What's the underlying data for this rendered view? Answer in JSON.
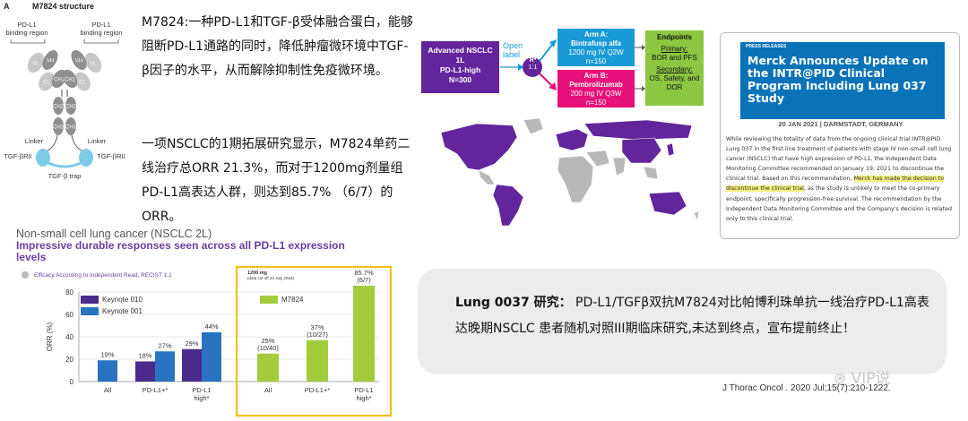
{
  "structure": {
    "panel_letter": "A",
    "title": "M7824 structure",
    "left_region": "PD-L1\nbinding region",
    "right_region": "PD-L1\nbinding region",
    "domains": {
      "vh": "VH",
      "vl": "VL",
      "cl": "CL",
      "ch1": "CH1",
      "ch2": "CH2",
      "ch3": "CH3"
    },
    "linker_left": "Linker",
    "linker_right": "Linker",
    "tgf_left": "TGF-βRII",
    "tgf_right": "TGF-βRII",
    "trap": "TGF-β trap",
    "colors": {
      "heavy": "#8f8f8f",
      "light": "#c7c7c7",
      "trap": "#7dcde8"
    }
  },
  "description": {
    "p1": "M7824:一种PD-L1和TGF-β受体融合蛋白，能够阻断PD-L1通路的同时，降低肿瘤微环境中TGF-β因子的水平，从而解除抑制性免疫微环境。",
    "p2": "一项NSCLC的1期拓展研究显示，M7824单药二线治疗总ORR 21.3%，而对于1200mg剂量组PD-L1高表达人群，则达到85.7% （6/7）的ORR。"
  },
  "flow": {
    "population": [
      "Advanced NSCLC",
      "1L",
      "PD-L1-high",
      "N=300"
    ],
    "open_label": [
      "Open",
      "label"
    ],
    "randomization": [
      "R*",
      "1:1"
    ],
    "arm_a": {
      "title": "Arm A:",
      "drug": "Bintrafusp alfa",
      "dose": "1200 mg IV Q2W",
      "n": "n=150"
    },
    "arm_b": {
      "title": "Arm B:",
      "drug": "Pembrolizumab",
      "dose": "200 mg IV Q3W",
      "n": "n=150"
    },
    "endpoints": {
      "title": "Endpoints",
      "primary_label": "Primary:",
      "primary": "BOR and PFS",
      "secondary_label": "Secondary:",
      "secondary": "OS, Safety, and DOR"
    },
    "colors": {
      "population": "#62259c",
      "arm_a": "#1a9ad6",
      "arm_b": "#e8107a",
      "endpoints": "#8dc641"
    }
  },
  "map": {
    "highlight_color": "#62259c",
    "land_color": "#b8b8b8"
  },
  "press": {
    "kicker": "PRESS RELEASES",
    "title": "Merck Announces Update on the INTR@PID Clinical Program Including Lung 037 Study",
    "date": "20 JAN 2021 | DARMSTADT, GERMANY",
    "body_pre": "While reviewing the totality of data from the ongoing clinical trial INTR@PID Lung 037 in the first-line treatment of patients with stage IV non-small cell lung cancer (NSCLC) that have high expression of PD-L1, the Independent Data Monitoring Committee recommended on January 19, 2021 to discontinue the clinical trial. Based on this recommendation, ",
    "body_highlight": "Merck has made the decision to discontinue the clinical trial",
    "body_post": ", as the study is unlikely to meet the co-primary endpoint, specifically progression-free survival. The recommendation by the Independent Data Monitoring Committee and the Company's decision is related only to this clinical trial."
  },
  "chart_header": {
    "title": "Non-small cell lung cancer (NSCLC 2L)",
    "subtitle": "Impressive durable responses seen across all PD-L1 expression levels",
    "note": "Efficacy According to Independent Read, RECIST 1.1",
    "dose_label": "1200 mg",
    "cutoff": "(data cut off 23 July 2018)"
  },
  "chart_data": {
    "type": "bar",
    "ylabel": "ORR (%)",
    "ylim": [
      0,
      80
    ],
    "yticks": [
      0,
      20,
      40,
      60,
      80
    ],
    "grid": true,
    "groups": [
      {
        "categories": [
          "All",
          "PD-L1+*",
          "PD-L1\nhigh*"
        ],
        "series": [
          {
            "name": "Keynote 010",
            "color": "#4a2b8c",
            "values": [
              null,
              18,
              29
            ]
          },
          {
            "name": "Keynote 001",
            "color": "#2a73c0",
            "values": [
              19,
              27,
              44
            ]
          }
        ],
        "labels": [
          [
            null,
            "18%",
            "29%"
          ],
          [
            "19%",
            "27%",
            "44%"
          ]
        ]
      },
      {
        "categories": [
          "All",
          "PD-L1+*",
          "PD-L1\nhigh*"
        ],
        "series": [
          {
            "name": "M7824",
            "color": "#a3cc3d",
            "values": [
              25,
              37,
              85.7
            ]
          }
        ],
        "labels": [
          [
            "25%\n(10/40)",
            "37%\n(10/27)",
            "85.7%\n(6/7)"
          ]
        ]
      }
    ]
  },
  "lung": {
    "label": "Lung 0037 研究：",
    "text": "PD-L1/TGFβ双抗M7824对比帕博利珠单抗一线治疗PD-L1高表达晚期NSCLC 患者随机对照III期临床研究,未达到终点，宣布提前终止！"
  },
  "citation": "J Thorac  Oncol . 2020 Jul;15(7):210-1222.",
  "watermark": "VIP说"
}
